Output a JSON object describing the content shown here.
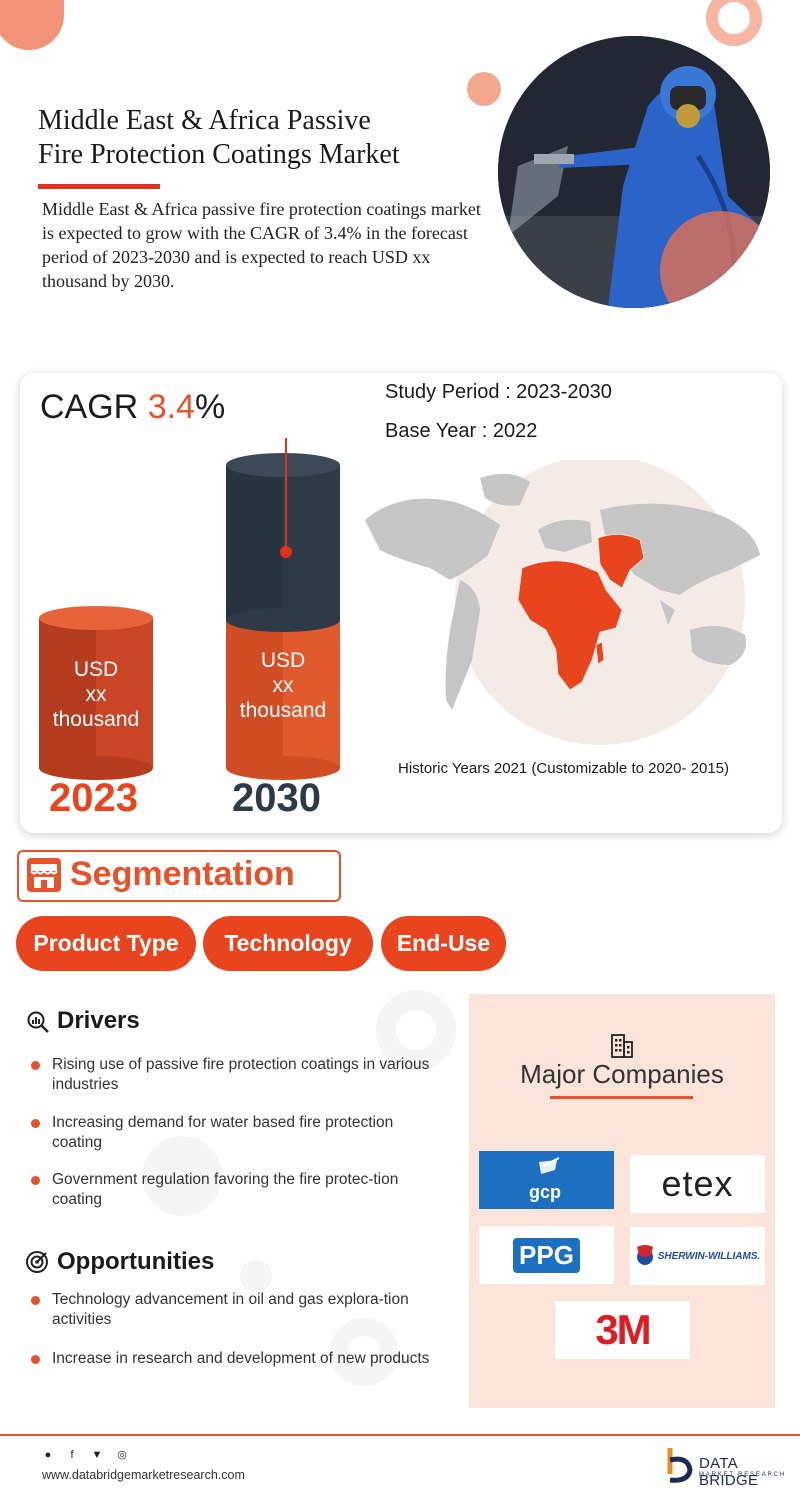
{
  "header": {
    "title_line1": "Middle East & Africa Passive",
    "title_line2": "Fire Protection Coatings Market",
    "intro": "Middle East & Africa passive fire protection coatings market is expected to grow with the CAGR of 3.4% in the forecast period of 2023-2030 and is expected to reach USD xx thousand by 2030."
  },
  "stats": {
    "cagr_label": "CAGR",
    "cagr_value": "3.4",
    "cagr_suffix": "%",
    "study_period": "Study Period : 2023-2030",
    "base_year": "Base Year : 2022",
    "historic_years": "Historic Years 2021 (Customizable to 2020- 2015)"
  },
  "cylinders": [
    {
      "line1": "USD",
      "line2": "xx",
      "line3": "thousand",
      "year": "2023"
    },
    {
      "line1": "USD",
      "line2": "xx",
      "line3": "thousand",
      "year": "2030"
    }
  ],
  "segmentation": {
    "title": "Segmentation",
    "pills": [
      "Product Type",
      "Technology",
      "End-Use"
    ]
  },
  "drivers": {
    "title": "Drivers",
    "items": [
      "Rising use of passive fire protection coatings in various industries",
      "Increasing demand for water based fire protection coating",
      "Government regulation favoring the fire protec-tion coating"
    ]
  },
  "opportunities": {
    "title": "Opportunities",
    "items": [
      "Technology advancement in oil and gas explora-tion activities",
      "Increase in research and development of new products"
    ]
  },
  "companies": {
    "title": "Major Companies",
    "logos": [
      "gcp",
      "etex",
      "PPG",
      "SHERWIN-WILLIAMS.",
      "3M"
    ]
  },
  "footer": {
    "url": "www.databridgemarketresearch.com",
    "brand": "DATA BRIDGE",
    "brand_sub": "MARKET RESEARCH"
  },
  "colors": {
    "accent": "#e8522b",
    "dark_cylinder": "#2e3b46",
    "companies_bg": "#fbe4da",
    "brand_navy": "#1c2a55"
  }
}
